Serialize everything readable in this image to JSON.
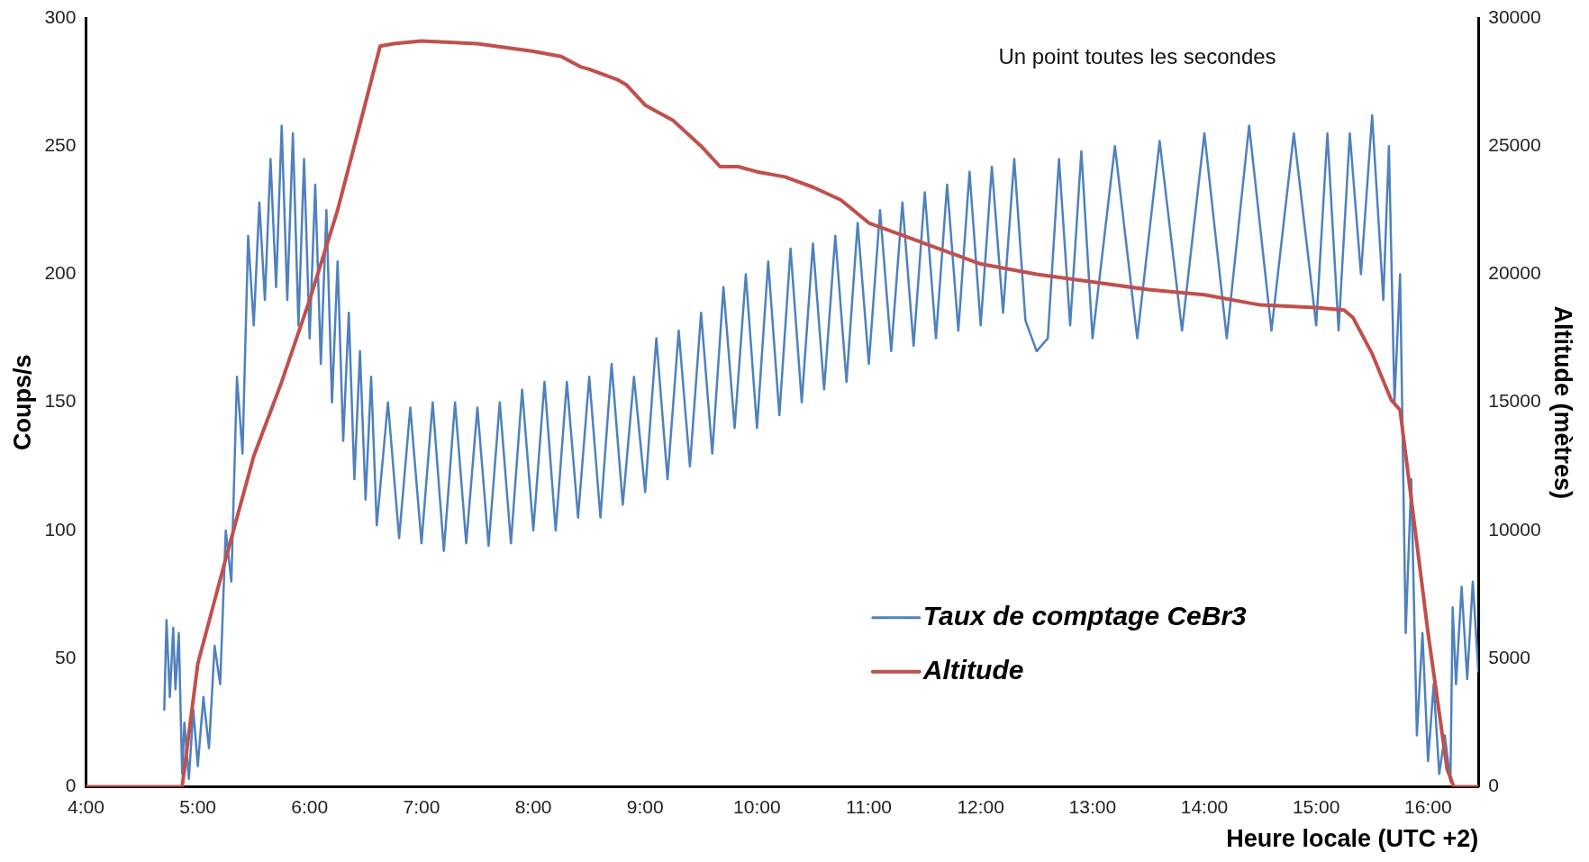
{
  "chart_data": {
    "type": "line",
    "xlabel": "Heure locale (UTC +2)",
    "ylabel": "Coups/s",
    "y2label": "Altitude (mètres)",
    "annotations": [
      "Un point toutes les secondes"
    ],
    "xlim": [
      4,
      16.45
    ],
    "xticks": [
      {
        "value": 4,
        "label": "4:00"
      },
      {
        "value": 5,
        "label": "5:00"
      },
      {
        "value": 6,
        "label": "6:00"
      },
      {
        "value": 7,
        "label": "7:00"
      },
      {
        "value": 8,
        "label": "8:00"
      },
      {
        "value": 9,
        "label": "9:00"
      },
      {
        "value": 10,
        "label": "10:00"
      },
      {
        "value": 11,
        "label": "11:00"
      },
      {
        "value": 12,
        "label": "12:00"
      },
      {
        "value": 13,
        "label": "13:00"
      },
      {
        "value": 14,
        "label": "14:00"
      },
      {
        "value": 15,
        "label": "15:00"
      },
      {
        "value": 16,
        "label": "16:00"
      }
    ],
    "ylim": [
      0,
      300
    ],
    "yticks": [
      0,
      50,
      100,
      150,
      200,
      250,
      300
    ],
    "y2lim": [
      0,
      30000
    ],
    "y2ticks": [
      0,
      5000,
      10000,
      15000,
      20000,
      25000,
      30000
    ],
    "grid": false,
    "legend": "bottom right",
    "marker": "none",
    "line_style": "solid",
    "series": [
      {
        "name": "Taux de comptage CeBr3",
        "color": "#4f81bd",
        "x": [
          4.7,
          4.72,
          4.75,
          4.78,
          4.8,
          4.83,
          4.86,
          4.88,
          4.92,
          4.96,
          5,
          5.05,
          5.1,
          5.15,
          5.2,
          5.25,
          5.3,
          5.35,
          5.4,
          5.45,
          5.5,
          5.55,
          5.6,
          5.65,
          5.7,
          5.75,
          5.8,
          5.85,
          5.9,
          5.95,
          6,
          6.05,
          6.1,
          6.15,
          6.2,
          6.25,
          6.3,
          6.35,
          6.4,
          6.45,
          6.5,
          6.55,
          6.6,
          6.7,
          6.8,
          6.9,
          7,
          7.1,
          7.2,
          7.3,
          7.4,
          7.5,
          7.6,
          7.7,
          7.8,
          7.9,
          8,
          8.1,
          8.2,
          8.3,
          8.4,
          8.5,
          8.6,
          8.7,
          8.8,
          8.9,
          9,
          9.1,
          9.2,
          9.3,
          9.4,
          9.5,
          9.6,
          9.7,
          9.8,
          9.9,
          10,
          10.1,
          10.2,
          10.3,
          10.4,
          10.5,
          10.6,
          10.7,
          10.8,
          10.9,
          11,
          11.1,
          11.2,
          11.3,
          11.4,
          11.5,
          11.6,
          11.7,
          11.8,
          11.9,
          12,
          12.1,
          12.2,
          12.3,
          12.4,
          12.5,
          12.6,
          12.7,
          12.8,
          12.9,
          13,
          13.2,
          13.4,
          13.6,
          13.8,
          14,
          14.2,
          14.4,
          14.6,
          14.8,
          15,
          15.1,
          15.2,
          15.3,
          15.4,
          15.5,
          15.6,
          15.65,
          15.7,
          15.75,
          15.8,
          15.85,
          15.9,
          15.95,
          16,
          16.05,
          16.1,
          16.15,
          16.2,
          16.22,
          16.25,
          16.3,
          16.35,
          16.4,
          16.45
        ],
        "values": [
          30,
          65,
          35,
          62,
          38,
          60,
          5,
          25,
          3,
          30,
          8,
          35,
          15,
          55,
          40,
          100,
          80,
          160,
          130,
          215,
          180,
          228,
          190,
          245,
          195,
          258,
          190,
          255,
          180,
          245,
          175,
          235,
          165,
          225,
          150,
          205,
          135,
          185,
          120,
          170,
          112,
          160,
          102,
          150,
          97,
          148,
          95,
          150,
          92,
          150,
          95,
          148,
          94,
          150,
          95,
          155,
          100,
          158,
          100,
          158,
          105,
          160,
          105,
          165,
          110,
          160,
          115,
          175,
          120,
          178,
          125,
          185,
          130,
          195,
          140,
          200,
          140,
          205,
          145,
          210,
          150,
          212,
          155,
          215,
          158,
          220,
          165,
          225,
          170,
          228,
          172,
          232,
          175,
          235,
          178,
          240,
          180,
          242,
          185,
          245,
          182,
          170,
          175,
          245,
          180,
          248,
          175,
          250,
          175,
          252,
          178,
          255,
          175,
          258,
          178,
          255,
          180,
          255,
          178,
          255,
          200,
          262,
          190,
          250,
          150,
          200,
          60,
          120,
          20,
          60,
          10,
          40,
          5,
          20,
          2,
          70,
          40,
          78,
          42,
          80,
          45
        ]
      },
      {
        "name": "Altitude",
        "color": "#c0504d",
        "axis": "y2",
        "x": [
          4,
          4.86,
          5,
          5.25,
          5.5,
          5.75,
          6,
          6.25,
          6.5,
          6.63,
          6.75,
          7,
          7.5,
          8,
          8.25,
          8.42,
          8.5,
          8.75,
          8.83,
          9,
          9.25,
          9.5,
          9.67,
          9.83,
          10,
          10.25,
          10.5,
          10.75,
          11,
          11.5,
          12,
          12.5,
          13,
          13.5,
          14,
          14.5,
          15,
          15.25,
          15.33,
          15.5,
          15.67,
          15.75,
          16,
          16.17,
          16.23,
          16.45
        ],
        "values": [
          0,
          0,
          4800,
          8900,
          12900,
          15800,
          19000,
          22500,
          26700,
          28900,
          29000,
          29100,
          29000,
          28700,
          28500,
          28100,
          28000,
          27600,
          27400,
          26600,
          26000,
          25000,
          24200,
          24200,
          24000,
          23800,
          23400,
          22900,
          22000,
          21200,
          20400,
          20000,
          19700,
          19400,
          19200,
          18800,
          18700,
          18600,
          18300,
          16900,
          15100,
          14700,
          6000,
          700,
          0,
          0
        ]
      }
    ]
  }
}
